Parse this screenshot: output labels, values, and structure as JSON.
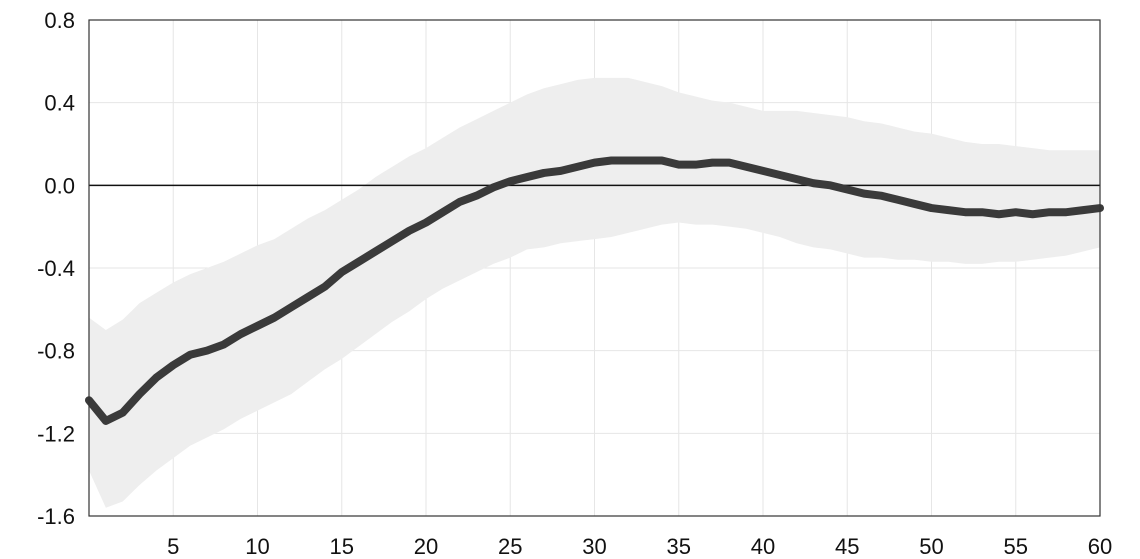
{
  "chart_data": {
    "type": "area",
    "title": "",
    "xlabel": "",
    "ylabel": "",
    "xlim": [
      0,
      60
    ],
    "ylim": [
      -1.6,
      0.8
    ],
    "x_ticks": [
      5,
      10,
      15,
      20,
      25,
      30,
      35,
      40,
      45,
      50,
      55,
      60
    ],
    "y_ticks": [
      0.8,
      0.4,
      0.0,
      -0.4,
      -0.8,
      -1.2,
      -1.6
    ],
    "y_tick_labels": [
      "0.8",
      "0.4",
      "0.0",
      "-0.4",
      "-0.8",
      "-1.2",
      "-1.6"
    ],
    "grid": true,
    "zero_line": true,
    "colors": {
      "line": "#3a3a3a",
      "band": "#eeeeee",
      "grid": "#e6e6e6",
      "zero": "#111111"
    },
    "series": [
      {
        "kind": "line",
        "x": [
          0,
          1,
          2,
          3,
          4,
          5,
          6,
          7,
          8,
          9,
          10,
          11,
          12,
          13,
          14,
          15,
          16,
          17,
          18,
          19,
          20,
          21,
          22,
          23,
          24,
          25,
          26,
          27,
          28,
          29,
          30,
          31,
          32,
          33,
          34,
          35,
          36,
          37,
          38,
          39,
          40,
          41,
          42,
          43,
          44,
          45,
          46,
          47,
          48,
          49,
          50,
          51,
          52,
          53,
          54,
          55,
          56,
          57,
          58,
          59,
          60
        ],
        "values": [
          -1.04,
          -1.14,
          -1.1,
          -1.01,
          -0.93,
          -0.87,
          -0.82,
          -0.8,
          -0.77,
          -0.72,
          -0.68,
          -0.64,
          -0.59,
          -0.54,
          -0.49,
          -0.42,
          -0.37,
          -0.32,
          -0.27,
          -0.22,
          -0.18,
          -0.13,
          -0.08,
          -0.05,
          -0.01,
          0.02,
          0.04,
          0.06,
          0.07,
          0.09,
          0.11,
          0.12,
          0.12,
          0.12,
          0.12,
          0.1,
          0.1,
          0.11,
          0.11,
          0.09,
          0.07,
          0.05,
          0.03,
          0.01,
          0.0,
          -0.02,
          -0.04,
          -0.05,
          -0.07,
          -0.09,
          -0.11,
          -0.12,
          -0.13,
          -0.13,
          -0.14,
          -0.13,
          -0.14,
          -0.13,
          -0.13,
          -0.12,
          -0.11
        ]
      },
      {
        "kind": "band",
        "x": [
          0,
          1,
          2,
          3,
          4,
          5,
          6,
          7,
          8,
          9,
          10,
          11,
          12,
          13,
          14,
          15,
          16,
          17,
          18,
          19,
          20,
          21,
          22,
          23,
          24,
          25,
          26,
          27,
          28,
          29,
          30,
          31,
          32,
          33,
          34,
          35,
          36,
          37,
          38,
          39,
          40,
          41,
          42,
          43,
          44,
          45,
          46,
          47,
          48,
          49,
          50,
          51,
          52,
          53,
          54,
          55,
          56,
          57,
          58,
          59,
          60
        ],
        "upper": [
          -0.64,
          -0.7,
          -0.65,
          -0.57,
          -0.52,
          -0.47,
          -0.43,
          -0.4,
          -0.37,
          -0.33,
          -0.29,
          -0.26,
          -0.21,
          -0.16,
          -0.12,
          -0.07,
          -0.02,
          0.04,
          0.09,
          0.14,
          0.18,
          0.23,
          0.28,
          0.32,
          0.36,
          0.4,
          0.44,
          0.47,
          0.49,
          0.51,
          0.52,
          0.52,
          0.52,
          0.5,
          0.48,
          0.45,
          0.43,
          0.41,
          0.4,
          0.38,
          0.36,
          0.36,
          0.36,
          0.35,
          0.34,
          0.33,
          0.31,
          0.3,
          0.28,
          0.26,
          0.25,
          0.23,
          0.21,
          0.2,
          0.2,
          0.19,
          0.18,
          0.17,
          0.17,
          0.17,
          0.17
        ],
        "lower": [
          -1.38,
          -1.56,
          -1.53,
          -1.45,
          -1.38,
          -1.32,
          -1.26,
          -1.22,
          -1.18,
          -1.13,
          -1.09,
          -1.05,
          -1.01,
          -0.95,
          -0.89,
          -0.84,
          -0.78,
          -0.72,
          -0.66,
          -0.61,
          -0.55,
          -0.5,
          -0.46,
          -0.42,
          -0.38,
          -0.35,
          -0.31,
          -0.3,
          -0.28,
          -0.27,
          -0.26,
          -0.25,
          -0.23,
          -0.21,
          -0.19,
          -0.18,
          -0.19,
          -0.19,
          -0.2,
          -0.21,
          -0.23,
          -0.25,
          -0.28,
          -0.3,
          -0.31,
          -0.33,
          -0.35,
          -0.35,
          -0.36,
          -0.36,
          -0.37,
          -0.37,
          -0.38,
          -0.38,
          -0.37,
          -0.37,
          -0.36,
          -0.35,
          -0.34,
          -0.32,
          -0.3
        ]
      }
    ]
  }
}
